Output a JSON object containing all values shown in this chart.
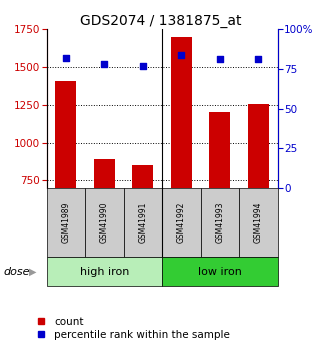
{
  "title": "GDS2074 / 1381875_at",
  "samples": [
    "GSM41989",
    "GSM41990",
    "GSM41991",
    "GSM41992",
    "GSM41993",
    "GSM41994"
  ],
  "bar_values": [
    1410,
    890,
    855,
    1700,
    1205,
    1255
  ],
  "scatter_values": [
    82,
    78,
    77,
    84,
    81,
    81
  ],
  "ylim_left": [
    700,
    1750
  ],
  "ylim_right": [
    0,
    100
  ],
  "yticks_left": [
    750,
    1000,
    1250,
    1500,
    1750
  ],
  "yticks_right": [
    0,
    25,
    50,
    75,
    100
  ],
  "bar_color": "#cc0000",
  "scatter_color": "#0000cc",
  "bar_bottom": 700,
  "groups": [
    {
      "label": "high iron",
      "indices": [
        0,
        1,
        2
      ],
      "color": "#b8eeb8"
    },
    {
      "label": "low iron",
      "indices": [
        3,
        4,
        5
      ],
      "color": "#33cc33"
    }
  ],
  "dose_label": "dose",
  "legend_count": "count",
  "legend_percentile": "percentile rank within the sample",
  "tick_label_color_left": "#cc0000",
  "tick_label_color_right": "#0000cc",
  "sample_box_color": "#cccccc",
  "title_fontsize": 10,
  "axis_fontsize": 7.5,
  "legend_fontsize": 7.5,
  "sample_fontsize": 5.5,
  "group_fontsize": 8
}
